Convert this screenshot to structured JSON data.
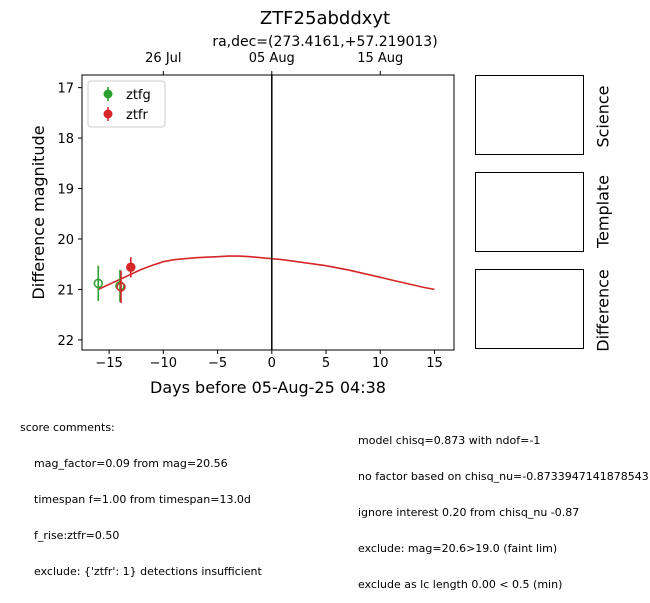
{
  "figure": {
    "title": "ZTF25abddxyt",
    "subtitle": "ra,dec=(273.4161,+57.219013)",
    "panel_labels": [
      "Science",
      "Template",
      "Difference"
    ]
  },
  "chart_data": {
    "type": "scatter",
    "xlabel": "Days before 05-Aug-25 04:38",
    "ylabel": "Difference magnitude",
    "xlim": [
      -17.5,
      16.8
    ],
    "ylim": [
      22.2,
      16.75
    ],
    "y_inverted": true,
    "x_ticks": [
      -15,
      -10,
      -5,
      0,
      5,
      10,
      15
    ],
    "x_tick_labels": [
      "−15",
      "−10",
      "−5",
      "0",
      "5",
      "10",
      "15"
    ],
    "y_ticks": [
      17,
      18,
      19,
      20,
      21,
      22
    ],
    "y_tick_labels": [
      "17",
      "18",
      "19",
      "20",
      "21",
      "22"
    ],
    "top_axis": {
      "ticks": [
        -10,
        0,
        10
      ],
      "labels": [
        "26 Jul",
        "05 Aug",
        "15 Aug"
      ]
    },
    "vertical_line_x": 0,
    "legend_position": "top-left",
    "grid": false,
    "series": [
      {
        "name": "ztfg",
        "color": "#2ca02c",
        "points": [
          {
            "x": -16.0,
            "y": 20.88,
            "err": 0.35,
            "filled": false
          },
          {
            "x": -14.0,
            "y": 20.93,
            "err": 0.32,
            "filled": false
          }
        ]
      },
      {
        "name": "ztfr",
        "color": "#d62728",
        "points": [
          {
            "x": -13.9,
            "y": 20.95,
            "err": 0.32,
            "filled": false
          },
          {
            "x": -13.0,
            "y": 20.56,
            "err": 0.2,
            "filled": true
          }
        ]
      }
    ],
    "model_curve": {
      "color": "#d62728",
      "x": [
        -16,
        -15,
        -14,
        -13,
        -12,
        -11,
        -10,
        -9,
        -8,
        -7,
        -6,
        -5,
        -4,
        -3,
        -2,
        -1,
        0,
        1,
        2,
        3,
        4,
        5,
        6,
        7,
        8,
        9,
        10,
        11,
        12,
        13,
        14,
        15
      ],
      "y": [
        21.0,
        20.9,
        20.8,
        20.7,
        20.6,
        20.52,
        20.45,
        20.41,
        20.39,
        20.37,
        20.36,
        20.35,
        20.34,
        20.34,
        20.35,
        20.37,
        20.39,
        20.41,
        20.44,
        20.47,
        20.5,
        20.53,
        20.57,
        20.61,
        20.66,
        20.71,
        20.76,
        20.81,
        20.86,
        20.91,
        20.96,
        21.0
      ]
    }
  },
  "comments_left": [
    "score comments:",
    "mag_factor=0.09 from mag=20.56",
    "timespan f=1.00 from timespan=13.0d",
    "f_rise:ztfr=0.50",
    "exclude: {'ztfr': 1} detections insufficient"
  ],
  "comments_right": [
    "model chisq=0.873 with ndof=-1",
    "no factor based on chisq_nu=-0.8733947141878543",
    "ignore interest 0.20 from chisq_nu -0.87",
    "exclude: mag=20.6>19.0 (faint lim)",
    "exclude as lc length 0.00 < 0.5 (min)"
  ]
}
